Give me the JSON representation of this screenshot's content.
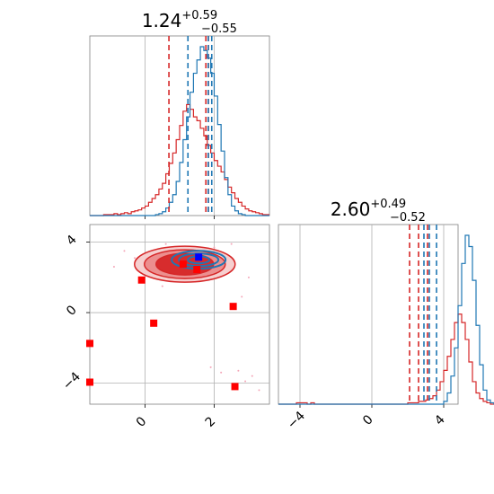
{
  "chart_data": {
    "type": "corner",
    "colors": {
      "red": "#d62728",
      "blue": "#1f77b4",
      "marker_red": "#ff0000",
      "marker_blue": "#0000ff",
      "grid": "#b0b0b0"
    },
    "panels": [
      {
        "id": "x_marginal",
        "type": "histogram",
        "title": "1.24",
        "title_sup": "+0.59",
        "title_sub": "−0.55",
        "xlim": [
          -1.6,
          3.6
        ],
        "gridlines_x": [
          0,
          2
        ],
        "quantiles": {
          "red": [
            0.69,
            1.76,
            1.83
          ],
          "blue": [
            1.24,
            1.83,
            1.93
          ]
        },
        "series": [
          {
            "name": "",
            "color": "#d62728",
            "bin_start": -1.6,
            "bin_width": 0.1,
            "counts": [
              0,
              0,
              0,
              0,
              1,
              1,
              1,
              2,
              1,
              2,
              3,
              2,
              4,
              5,
              6,
              8,
              10,
              14,
              18,
              22,
              28,
              34,
              44,
              55,
              66,
              80,
              95,
              110,
              117,
              112,
              104,
              100,
              92,
              84,
              74,
              66,
              58,
              52,
              46,
              38,
              30,
              24,
              18,
              14,
              10,
              7,
              5,
              4,
              3,
              2,
              1,
              1
            ]
          },
          {
            "name": "",
            "color": "#1f77b4",
            "bin_start": -1.6,
            "bin_width": 0.1,
            "counts": [
              0,
              0,
              0,
              0,
              0,
              0,
              0,
              0,
              0,
              0,
              0,
              0,
              0,
              0,
              0,
              0,
              0,
              0,
              0,
              1,
              2,
              4,
              8,
              14,
              22,
              36,
              56,
              80,
              104,
              130,
              150,
              164,
              178,
              174,
              166,
              150,
              126,
              96,
              68,
              40,
              22,
              10,
              5,
              2,
              1,
              0,
              0,
              0,
              0,
              0,
              0,
              0
            ]
          }
        ]
      },
      {
        "id": "y_marginal",
        "type": "histogram",
        "title": "2.60",
        "title_sup": "+0.49",
        "title_sub": "−0.52",
        "xlim": [
          -5.2,
          4.8
        ],
        "xticks": [
          "−4",
          "0",
          "4"
        ],
        "xtick_values": [
          -4,
          0,
          4
        ],
        "quantiles": {
          "red": [
            2.1,
            2.6,
            3.1
          ],
          "blue": [
            2.9,
            3.2,
            3.6
          ]
        },
        "series": [
          {
            "name": "",
            "color": "#d62728",
            "bin_start": -5.2,
            "bin_width": 0.2,
            "counts": [
              0,
              0,
              0,
              0,
              0,
              1,
              1,
              1,
              0,
              1,
              0,
              0,
              0,
              0,
              0,
              0,
              0,
              0,
              0,
              0,
              0,
              0,
              0,
              0,
              0,
              0,
              0,
              0,
              0,
              0,
              0,
              0,
              0,
              0,
              0,
              0,
              1,
              1,
              1,
              2,
              2,
              3,
              4,
              6,
              10,
              16,
              24,
              34,
              46,
              58,
              64,
              58,
              46,
              30,
              16,
              8,
              4,
              2,
              1,
              0,
              0
            ]
          },
          {
            "name": "",
            "color": "#1f77b4",
            "bin_start": -5.2,
            "bin_width": 0.2,
            "counts": [
              0,
              0,
              0,
              0,
              0,
              0,
              0,
              0,
              0,
              0,
              0,
              0,
              0,
              0,
              0,
              0,
              0,
              0,
              0,
              0,
              0,
              0,
              0,
              0,
              0,
              0,
              0,
              0,
              0,
              0,
              0,
              0,
              0,
              0,
              0,
              0,
              0,
              0,
              0,
              0,
              0,
              0,
              0,
              0,
              0,
              0,
              2,
              8,
              20,
              40,
              70,
              100,
              120,
              112,
              88,
              56,
              28,
              10,
              3,
              1,
              0
            ]
          }
        ]
      },
      {
        "id": "joint",
        "type": "scatter",
        "xlim": [
          -1.6,
          3.6
        ],
        "ylim": [
          -5.2,
          5.0
        ],
        "xticks": [
          "0",
          "2"
        ],
        "xtick_values": [
          0,
          2
        ],
        "yticks": [
          "−4",
          "0",
          "4"
        ],
        "ytick_values": [
          -4,
          0,
          4
        ],
        "red_points": [
          [
            -0.1,
            1.85
          ],
          [
            0.25,
            -0.6
          ],
          [
            1.1,
            2.75
          ],
          [
            1.5,
            2.45
          ],
          [
            2.55,
            0.35
          ],
          [
            2.6,
            -4.2
          ],
          [
            -1.6,
            -1.75
          ],
          [
            -1.6,
            -3.95
          ]
        ],
        "blue_points": [
          [
            1.55,
            3.15
          ]
        ],
        "background_points": [
          [
            -0.6,
            3.5
          ],
          [
            2.7,
            -3.3
          ],
          [
            3.1,
            -3.6
          ],
          [
            2.2,
            -3.4
          ],
          [
            0.6,
            3.9
          ],
          [
            3.0,
            2.0
          ],
          [
            2.5,
            3.9
          ],
          [
            -0.3,
            3.1
          ],
          [
            1.9,
            -3.1
          ],
          [
            2.0,
            3.7
          ],
          [
            0.5,
            1.5
          ],
          [
            3.3,
            -4.4
          ],
          [
            2.9,
            -3.9
          ],
          [
            -0.9,
            2.6
          ],
          [
            2.8,
            0.9
          ]
        ]
      }
    ]
  }
}
